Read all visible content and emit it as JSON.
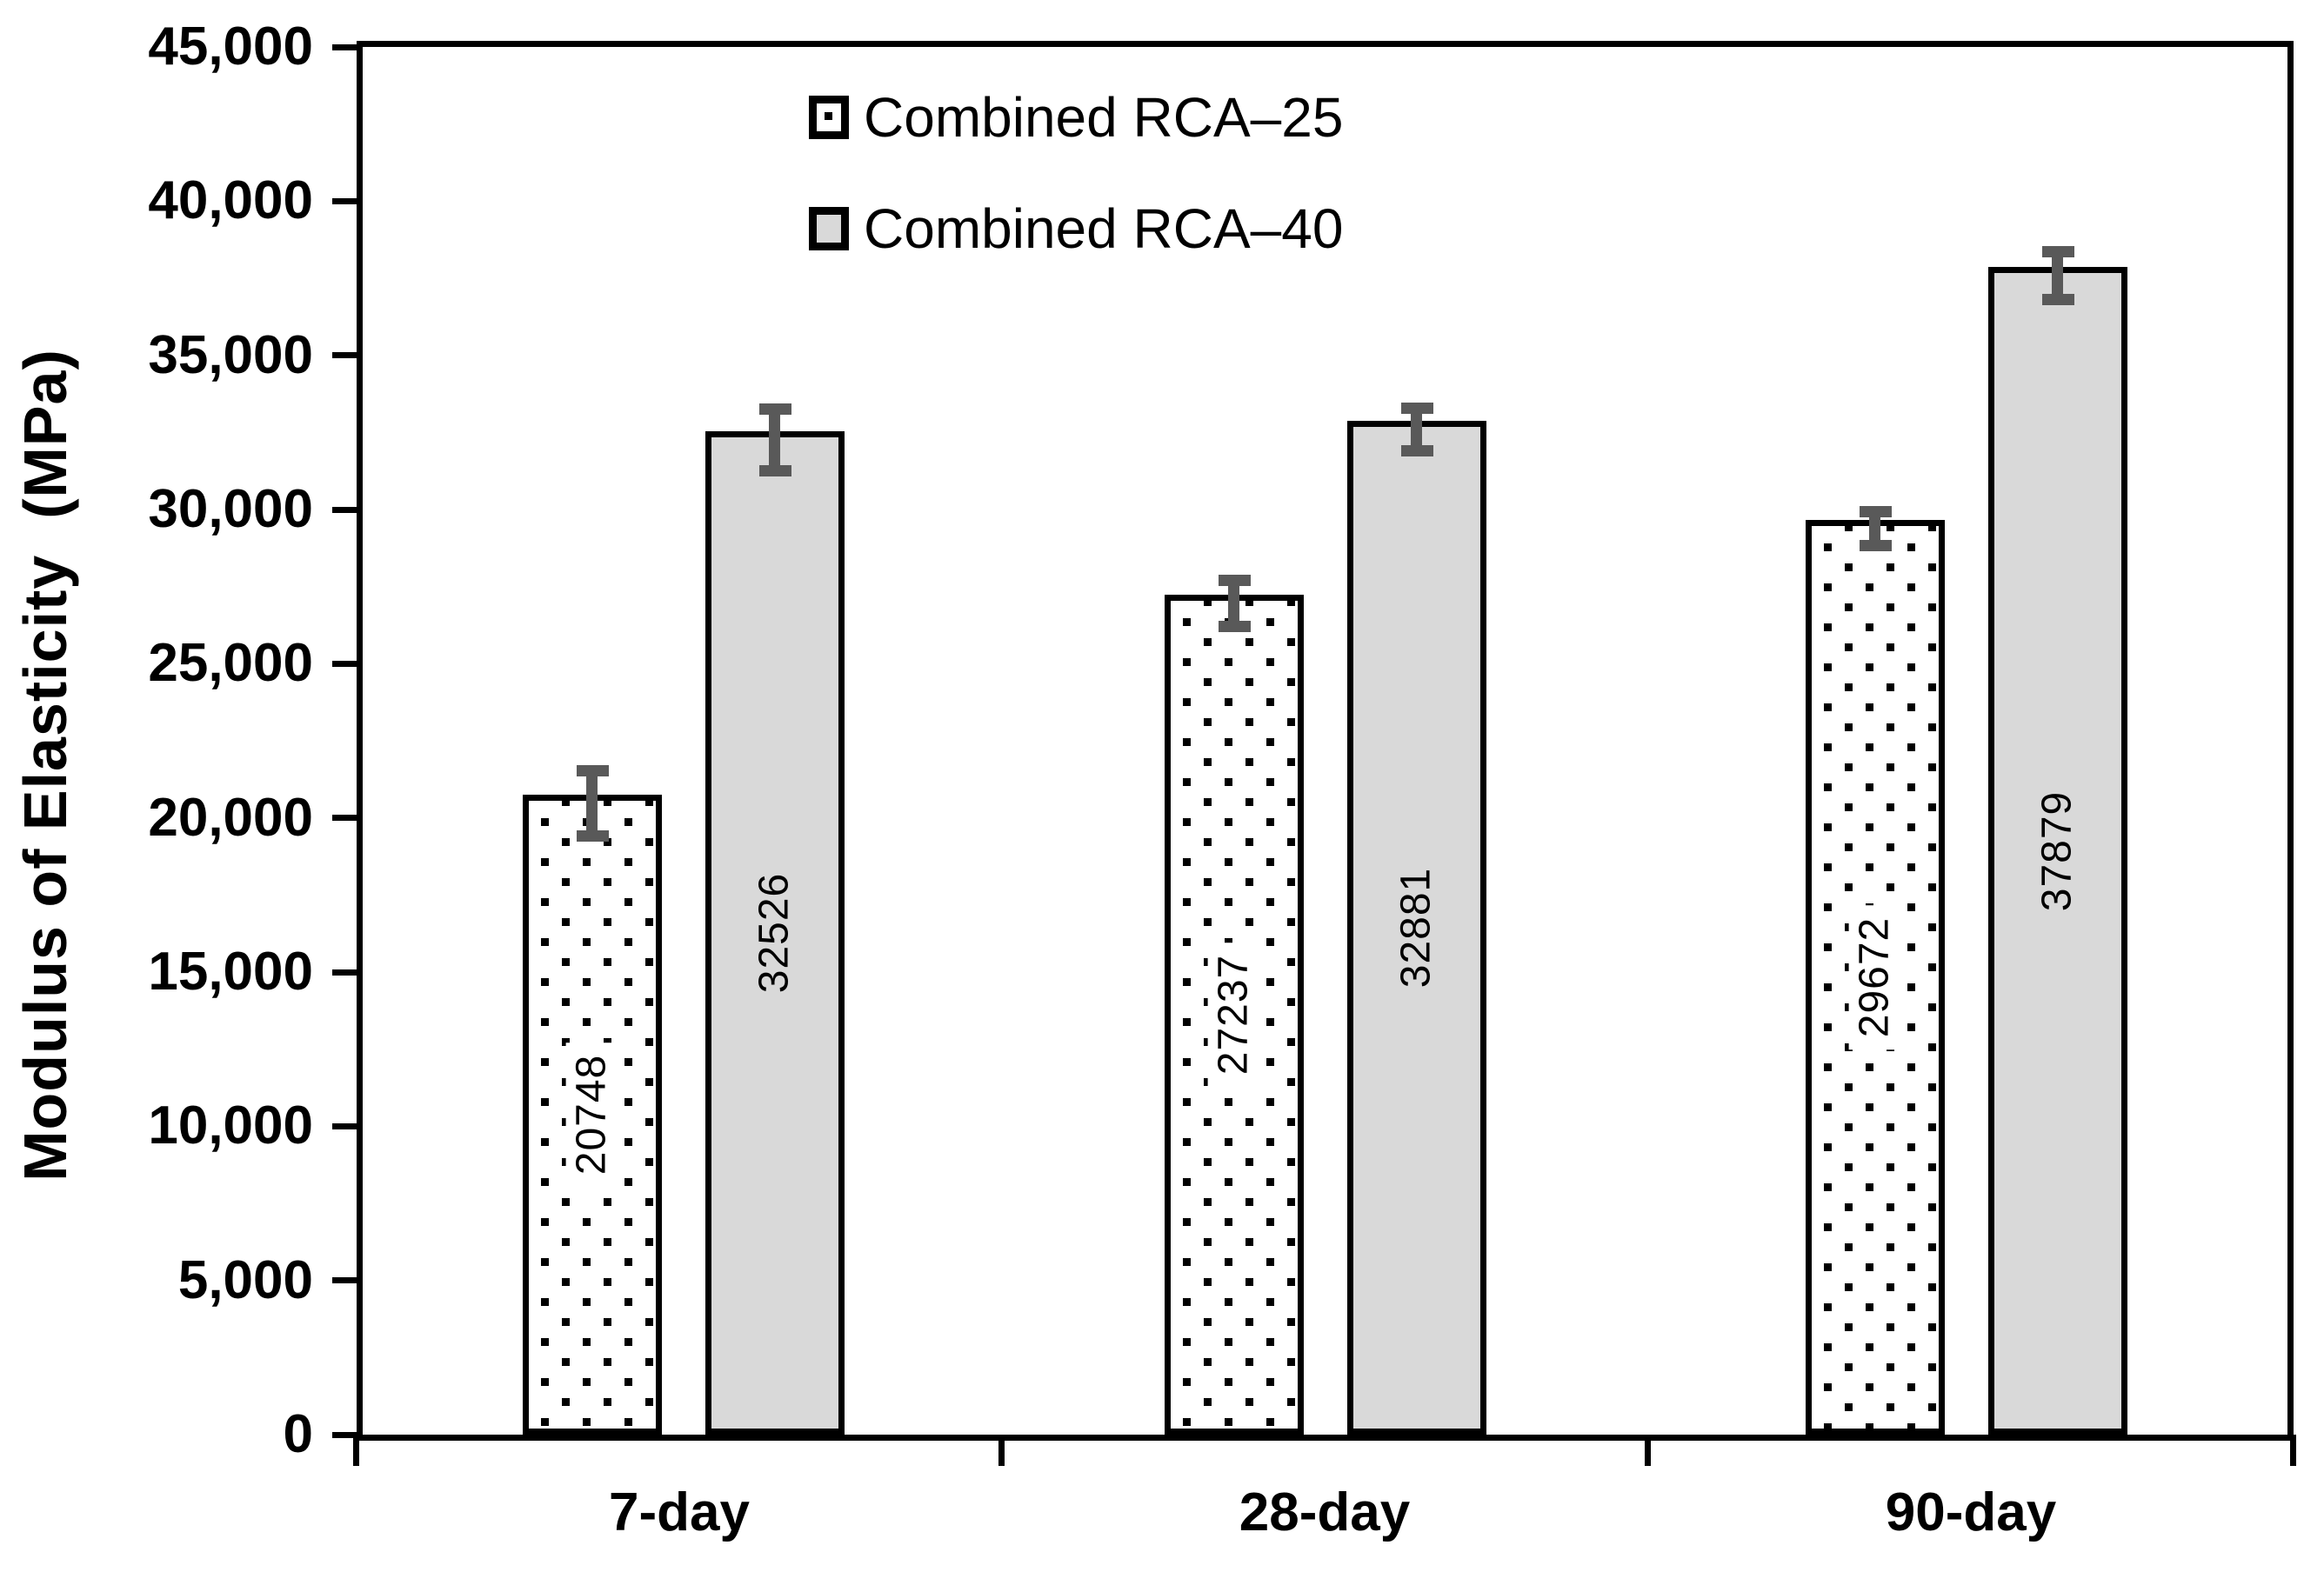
{
  "chart_data": {
    "type": "bar",
    "title": "",
    "xlabel": "",
    "ylabel": "Modulus of Elasticity  (MPa)",
    "categories": [
      "7-day",
      "28-day",
      "90-day"
    ],
    "series": [
      {
        "name": "Combined RCA–25",
        "style": "dotted",
        "values": [
          20748,
          27237,
          29672
        ],
        "errors": [
          1050,
          730,
          530
        ]
      },
      {
        "name": "Combined RCA–40",
        "style": "gray",
        "values": [
          32526,
          32881,
          37879
        ],
        "errors": [
          1000,
          680,
          760
        ]
      }
    ],
    "ylim": [
      0,
      45000
    ],
    "ytick_step": 5000,
    "ytick_labels": [
      "0",
      "5,000",
      "10,000",
      "15,000",
      "20,000",
      "25,000",
      "30,000",
      "35,000",
      "40,000",
      "45,000"
    ],
    "grid": false,
    "legend_position": "top-left-inside",
    "colors": {
      "rca25_fill": "#FFFFFF",
      "rca40_fill": "#D9D9D9",
      "bar_border": "#000000",
      "error_bar": "#595959",
      "text": "#000000"
    }
  }
}
